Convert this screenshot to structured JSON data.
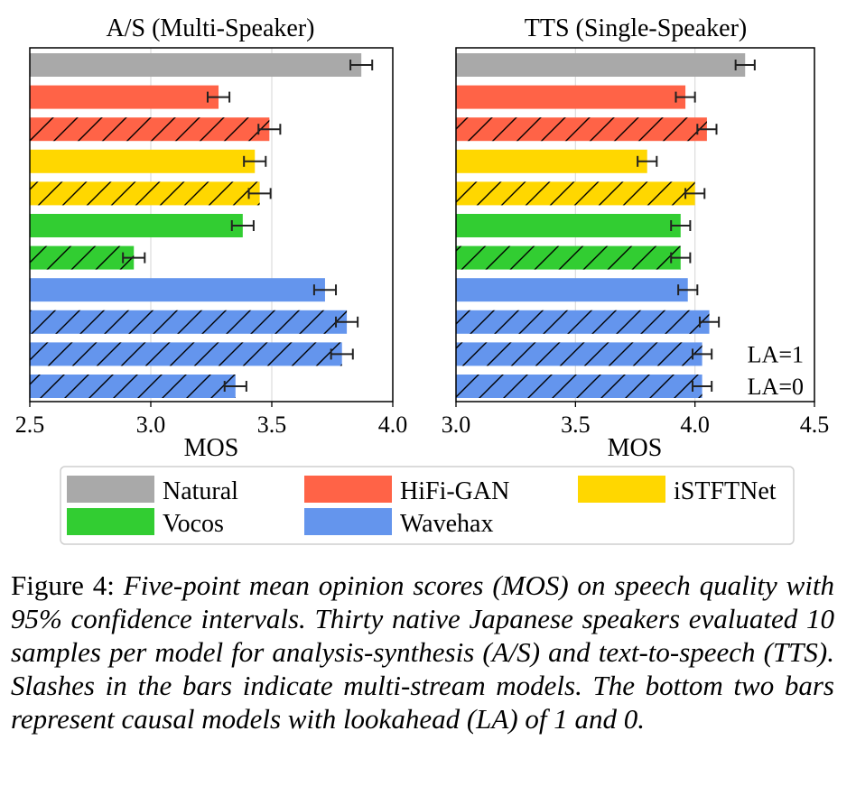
{
  "chart_data": [
    {
      "type": "bar",
      "orientation": "horizontal",
      "title": "A/S (Multi-Speaker)",
      "xlabel": "MOS",
      "ylabel": "",
      "xlim": [
        2.5,
        4.0
      ],
      "xticks": [
        "2.5",
        "3.0",
        "3.5",
        "4.0"
      ],
      "grid": "vertical",
      "bars": [
        {
          "model": "Natural",
          "multi_stream": false,
          "mos": 3.87,
          "ci": 0.045
        },
        {
          "model": "HiFi-GAN",
          "multi_stream": false,
          "mos": 3.28,
          "ci": 0.045
        },
        {
          "model": "HiFi-GAN",
          "multi_stream": true,
          "mos": 3.49,
          "ci": 0.045
        },
        {
          "model": "iSTFTNet",
          "multi_stream": false,
          "mos": 3.43,
          "ci": 0.045
        },
        {
          "model": "iSTFTNet",
          "multi_stream": true,
          "mos": 3.45,
          "ci": 0.045
        },
        {
          "model": "Vocos",
          "multi_stream": false,
          "mos": 3.38,
          "ci": 0.045
        },
        {
          "model": "Vocos",
          "multi_stream": true,
          "mos": 2.93,
          "ci": 0.045
        },
        {
          "model": "Wavehax",
          "multi_stream": false,
          "mos": 3.72,
          "ci": 0.045
        },
        {
          "model": "Wavehax",
          "multi_stream": true,
          "mos": 3.81,
          "ci": 0.045
        },
        {
          "model": "Wavehax",
          "multi_stream": true,
          "mos": 3.79,
          "ci": 0.045
        },
        {
          "model": "Wavehax",
          "multi_stream": true,
          "mos": 3.35,
          "ci": 0.045
        }
      ]
    },
    {
      "type": "bar",
      "orientation": "horizontal",
      "title": "TTS (Single-Speaker)",
      "xlabel": "MOS",
      "ylabel": "",
      "xlim": [
        3.0,
        4.5
      ],
      "xticks": [
        "3.0",
        "3.5",
        "4.0",
        "4.5"
      ],
      "grid": "vertical",
      "bars": [
        {
          "model": "Natural",
          "multi_stream": false,
          "mos": 4.21,
          "ci": 0.04
        },
        {
          "model": "HiFi-GAN",
          "multi_stream": false,
          "mos": 3.96,
          "ci": 0.04
        },
        {
          "model": "HiFi-GAN",
          "multi_stream": true,
          "mos": 4.05,
          "ci": 0.04
        },
        {
          "model": "iSTFTNet",
          "multi_stream": false,
          "mos": 3.8,
          "ci": 0.04
        },
        {
          "model": "iSTFTNet",
          "multi_stream": true,
          "mos": 4.0,
          "ci": 0.04
        },
        {
          "model": "Vocos",
          "multi_stream": false,
          "mos": 3.94,
          "ci": 0.04
        },
        {
          "model": "Vocos",
          "multi_stream": true,
          "mos": 3.94,
          "ci": 0.04
        },
        {
          "model": "Wavehax",
          "multi_stream": false,
          "mos": 3.97,
          "ci": 0.04
        },
        {
          "model": "Wavehax",
          "multi_stream": true,
          "mos": 4.06,
          "ci": 0.04
        },
        {
          "model": "Wavehax",
          "multi_stream": true,
          "mos": 4.03,
          "ci": 0.04
        },
        {
          "model": "Wavehax",
          "multi_stream": true,
          "mos": 4.03,
          "ci": 0.04
        }
      ],
      "annotations": [
        {
          "text": "LA=1",
          "bar_index": 9
        },
        {
          "text": "LA=0",
          "bar_index": 10
        }
      ]
    }
  ],
  "legend": {
    "placement": "bottom",
    "items": [
      {
        "label": "Natural",
        "color": "#a9a9a9"
      },
      {
        "label": "HiFi-GAN",
        "color": "#ff6347"
      },
      {
        "label": "iSTFTNet",
        "color": "#ffd700"
      },
      {
        "label": "Vocos",
        "color": "#32cd32"
      },
      {
        "label": "Wavehax",
        "color": "#6495ed"
      }
    ]
  },
  "caption": {
    "label": "Figure 4:",
    "text": "Five-point mean opinion scores (MOS) on speech quality with 95% confidence intervals. Thirty native Japanese speakers evaluated 10 samples per model for analysis-synthesis (A/S) and text-to-speech (TTS). Slashes in the bars indicate multi-stream models. The bottom two bars represent causal models with lookahead (LA) of 1 and 0."
  }
}
